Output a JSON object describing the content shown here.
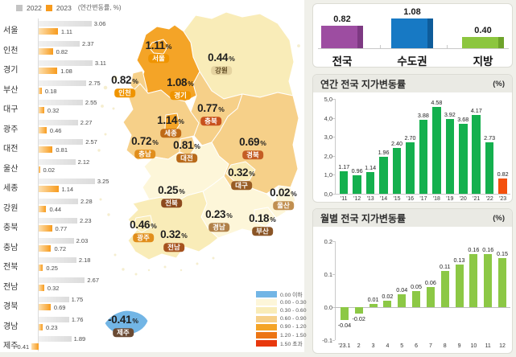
{
  "chart_data": [
    {
      "id": "regional_bars",
      "type": "bar",
      "unit_label": "(연간변동률, %)",
      "categories": [
        "서울",
        "인천",
        "경기",
        "부산",
        "대구",
        "광주",
        "대전",
        "울산",
        "세종",
        "강원",
        "충북",
        "충남",
        "전북",
        "전남",
        "경북",
        "경남",
        "제주"
      ],
      "series": [
        {
          "name": "2022",
          "color": "#c4c4c4",
          "values": [
            3.06,
            2.37,
            3.11,
            2.75,
            2.55,
            2.27,
            2.57,
            2.12,
            3.25,
            2.28,
            2.23,
            2.03,
            2.18,
            2.67,
            1.75,
            1.76,
            1.89
          ]
        },
        {
          "name": "2023",
          "color": "#f79b1d",
          "values": [
            1.11,
            0.82,
            1.08,
            0.18,
            0.32,
            0.46,
            0.81,
            0.02,
            1.14,
            0.44,
            0.77,
            0.72,
            0.25,
            0.32,
            0.69,
            0.23,
            -0.41
          ]
        }
      ]
    },
    {
      "id": "region_map",
      "type": "heatmap",
      "percent_suffix": "%",
      "regions": [
        {
          "name": "서울",
          "value": "1.11",
          "band": 4,
          "badge_color": "#ef9400"
        },
        {
          "name": "인천",
          "value": "0.82",
          "band": 3,
          "badge_color": "#ef9400"
        },
        {
          "name": "경기",
          "value": "1.08",
          "band": 4,
          "badge_color": "#ef9400"
        },
        {
          "name": "강원",
          "value": "0.44",
          "band": 2,
          "badge_color": "#e5d3a0",
          "badge_text": "#5f4a22"
        },
        {
          "name": "충북",
          "value": "0.77",
          "band": 3,
          "badge_color": "#c8511d"
        },
        {
          "name": "세종",
          "value": "1.14",
          "band": 4,
          "badge_color": "#bf6a16"
        },
        {
          "name": "충남",
          "value": "0.72",
          "band": 3,
          "badge_color": "#e18e1c"
        },
        {
          "name": "대전",
          "value": "0.81",
          "band": 3,
          "badge_color": "#b96a1a"
        },
        {
          "name": "경북",
          "value": "0.69",
          "band": 3,
          "badge_color": "#c45d24"
        },
        {
          "name": "대구",
          "value": "0.32",
          "band": 2,
          "badge_color": "#985c24"
        },
        {
          "name": "울산",
          "value": "0.02",
          "band": 1,
          "badge_color": "#c18f50"
        },
        {
          "name": "전북",
          "value": "0.25",
          "band": 1,
          "badge_color": "#8d4a1d"
        },
        {
          "name": "광주",
          "value": "0.46",
          "band": 2,
          "badge_color": "#e18e1c"
        },
        {
          "name": "전남",
          "value": "0.32",
          "band": 2,
          "badge_color": "#a6531f"
        },
        {
          "name": "경남",
          "value": "0.23",
          "band": 1,
          "badge_color": "#b08048"
        },
        {
          "name": "부산",
          "value": "0.18",
          "band": 1,
          "badge_color": "#8a5526"
        },
        {
          "name": "제주",
          "value": "-0.41",
          "band": 0,
          "badge_color": "#6a4a33"
        }
      ],
      "band_colors": [
        "#72b5e5",
        "#fdf6d9",
        "#f9ecb8",
        "#f6d089",
        "#f4a427",
        "#ec7514",
        "#e8380d"
      ],
      "legend_labels": [
        "0.00 이하",
        "0.00 - 0.30",
        "0.30 - 0.60",
        "0.60 - 0.90",
        "0.90 - 1.20",
        "1.20 - 1.50",
        "1.50 초과"
      ]
    },
    {
      "id": "summary_bars",
      "type": "bar",
      "categories": [
        "전국",
        "수도권",
        "지방"
      ],
      "values": [
        0.82,
        1.08,
        0.4
      ],
      "colors": [
        "#9d4da1",
        "#1779c4",
        "#8cc63f"
      ],
      "side_colors": [
        "#7d3982",
        "#0e5c9a",
        "#6ea32b"
      ]
    },
    {
      "id": "annual_national",
      "type": "bar",
      "title": "연간 전국 지가변동률",
      "unit": "(%)",
      "categories": [
        "'11",
        "'12",
        "'13",
        "'14",
        "'15",
        "'16",
        "'17",
        "'18",
        "'19",
        "'20",
        "'21",
        "'22",
        "'23"
      ],
      "values": [
        1.17,
        0.96,
        1.14,
        1.96,
        2.4,
        2.7,
        3.88,
        4.58,
        3.92,
        3.68,
        4.17,
        2.73,
        0.82
      ],
      "yticks": [
        "5,0",
        "4,0",
        "3,0",
        "2,0",
        "1,0",
        "0,0"
      ],
      "ylim": [
        0,
        5
      ],
      "bar_color": "#14b04e",
      "highlight_color": "#f4500e",
      "highlight_index": 12
    },
    {
      "id": "monthly_national",
      "type": "bar",
      "title": "월별 전국 지가변동률",
      "unit": "(%)",
      "categories": [
        "'23.1",
        "2",
        "3",
        "4",
        "5",
        "6",
        "7",
        "8",
        "9",
        "10",
        "11",
        "12"
      ],
      "values": [
        -0.04,
        -0.02,
        0.01,
        0.02,
        0.04,
        0.05,
        0.06,
        0.11,
        0.13,
        0.16,
        0.16,
        0.15
      ],
      "yticks": [
        "0.2",
        "0.1",
        "0.0",
        "-0.1"
      ],
      "ylim": [
        -0.1,
        0.2
      ],
      "bar_color": "#8cc845"
    }
  ]
}
